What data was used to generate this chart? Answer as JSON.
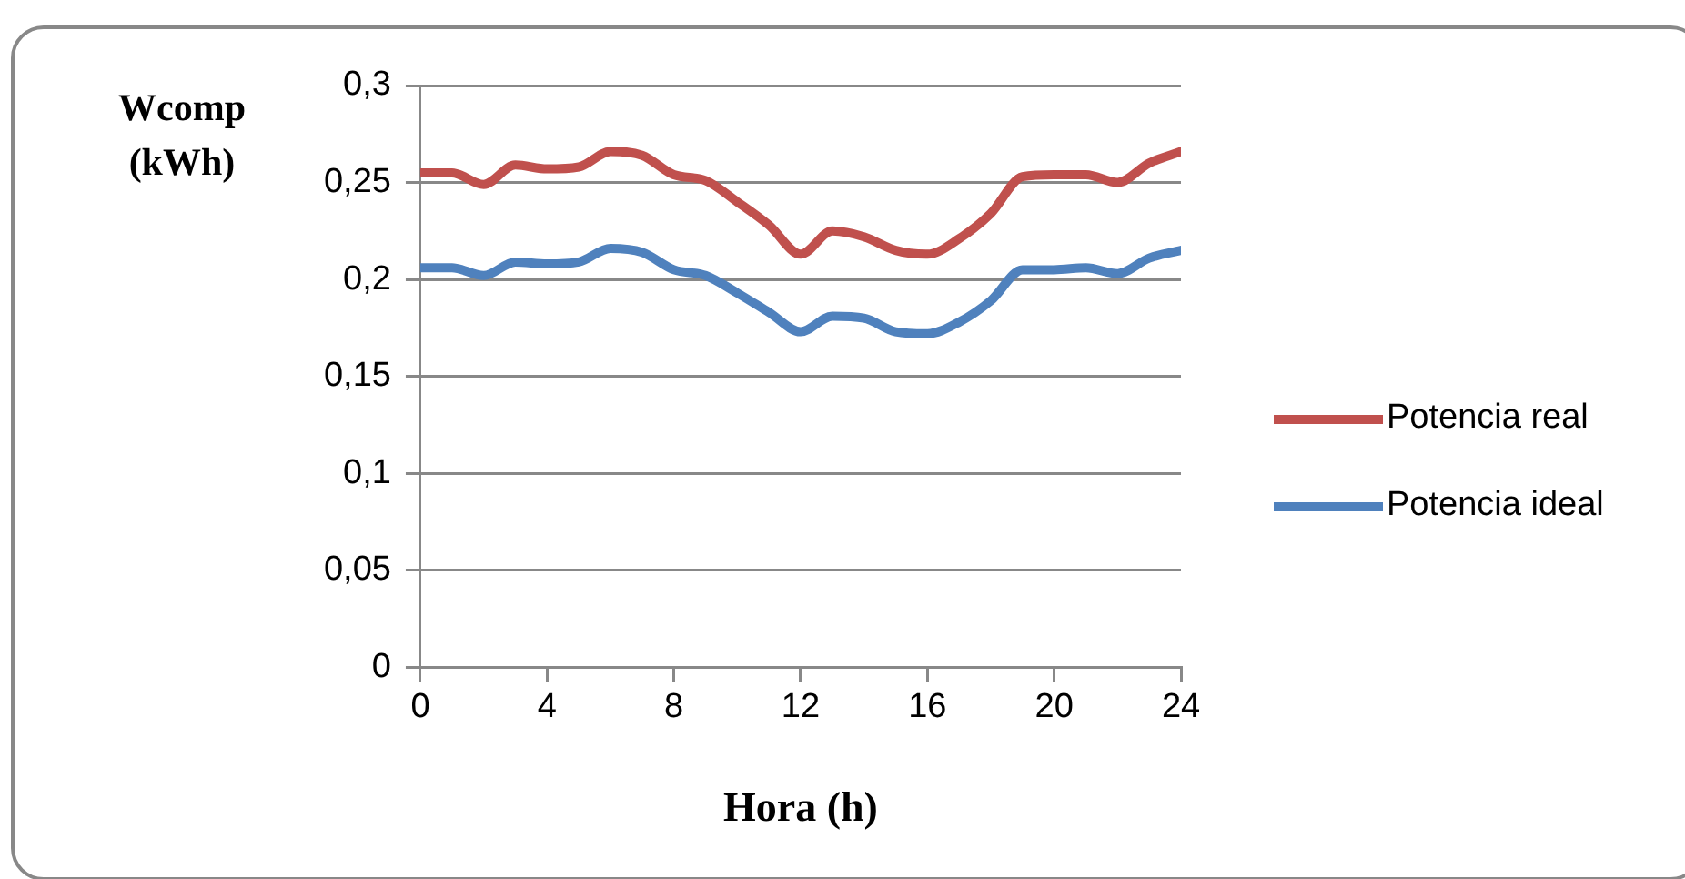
{
  "chart_data": {
    "type": "line",
    "xlabel": "Hora (h)",
    "ylabel": "Wcomp (kWh)",
    "x": [
      0,
      1,
      2,
      3,
      4,
      5,
      6,
      7,
      8,
      9,
      10,
      11,
      12,
      13,
      14,
      15,
      16,
      17,
      18,
      19,
      20,
      21,
      22,
      23,
      24
    ],
    "series": [
      {
        "name": "Potencia real",
        "color": "#c0504d",
        "values": [
          0.255,
          0.255,
          0.249,
          0.259,
          0.257,
          0.258,
          0.266,
          0.264,
          0.254,
          0.251,
          0.24,
          0.228,
          0.213,
          0.225,
          0.222,
          0.215,
          0.213,
          0.221,
          0.234,
          0.253,
          0.254,
          0.254,
          0.25,
          0.26,
          0.266
        ]
      },
      {
        "name": "Potencia ideal",
        "color": "#4f81bd",
        "values": [
          0.206,
          0.206,
          0.202,
          0.209,
          0.208,
          0.209,
          0.216,
          0.214,
          0.205,
          0.202,
          0.193,
          0.183,
          0.173,
          0.181,
          0.18,
          0.173,
          0.172,
          0.178,
          0.189,
          0.205,
          0.205,
          0.206,
          0.203,
          0.211,
          0.215
        ]
      }
    ],
    "xlim": [
      0,
      24
    ],
    "xticks": [
      0,
      4,
      8,
      12,
      16,
      20,
      24
    ],
    "ylim": [
      0,
      0.3
    ],
    "yticks": [
      0,
      {
        "value": 0.05,
        "label": "0,05"
      },
      {
        "value": 0.1,
        "label": "0,1"
      },
      {
        "value": 0.15,
        "label": "0,15"
      },
      {
        "value": 0.2,
        "label": "0,2"
      },
      {
        "value": 0.25,
        "label": "0,25"
      },
      {
        "value": 0.3,
        "label": "0,3"
      }
    ],
    "grid": "y",
    "legend": "right",
    "marker": "none",
    "line_style": "solid"
  }
}
